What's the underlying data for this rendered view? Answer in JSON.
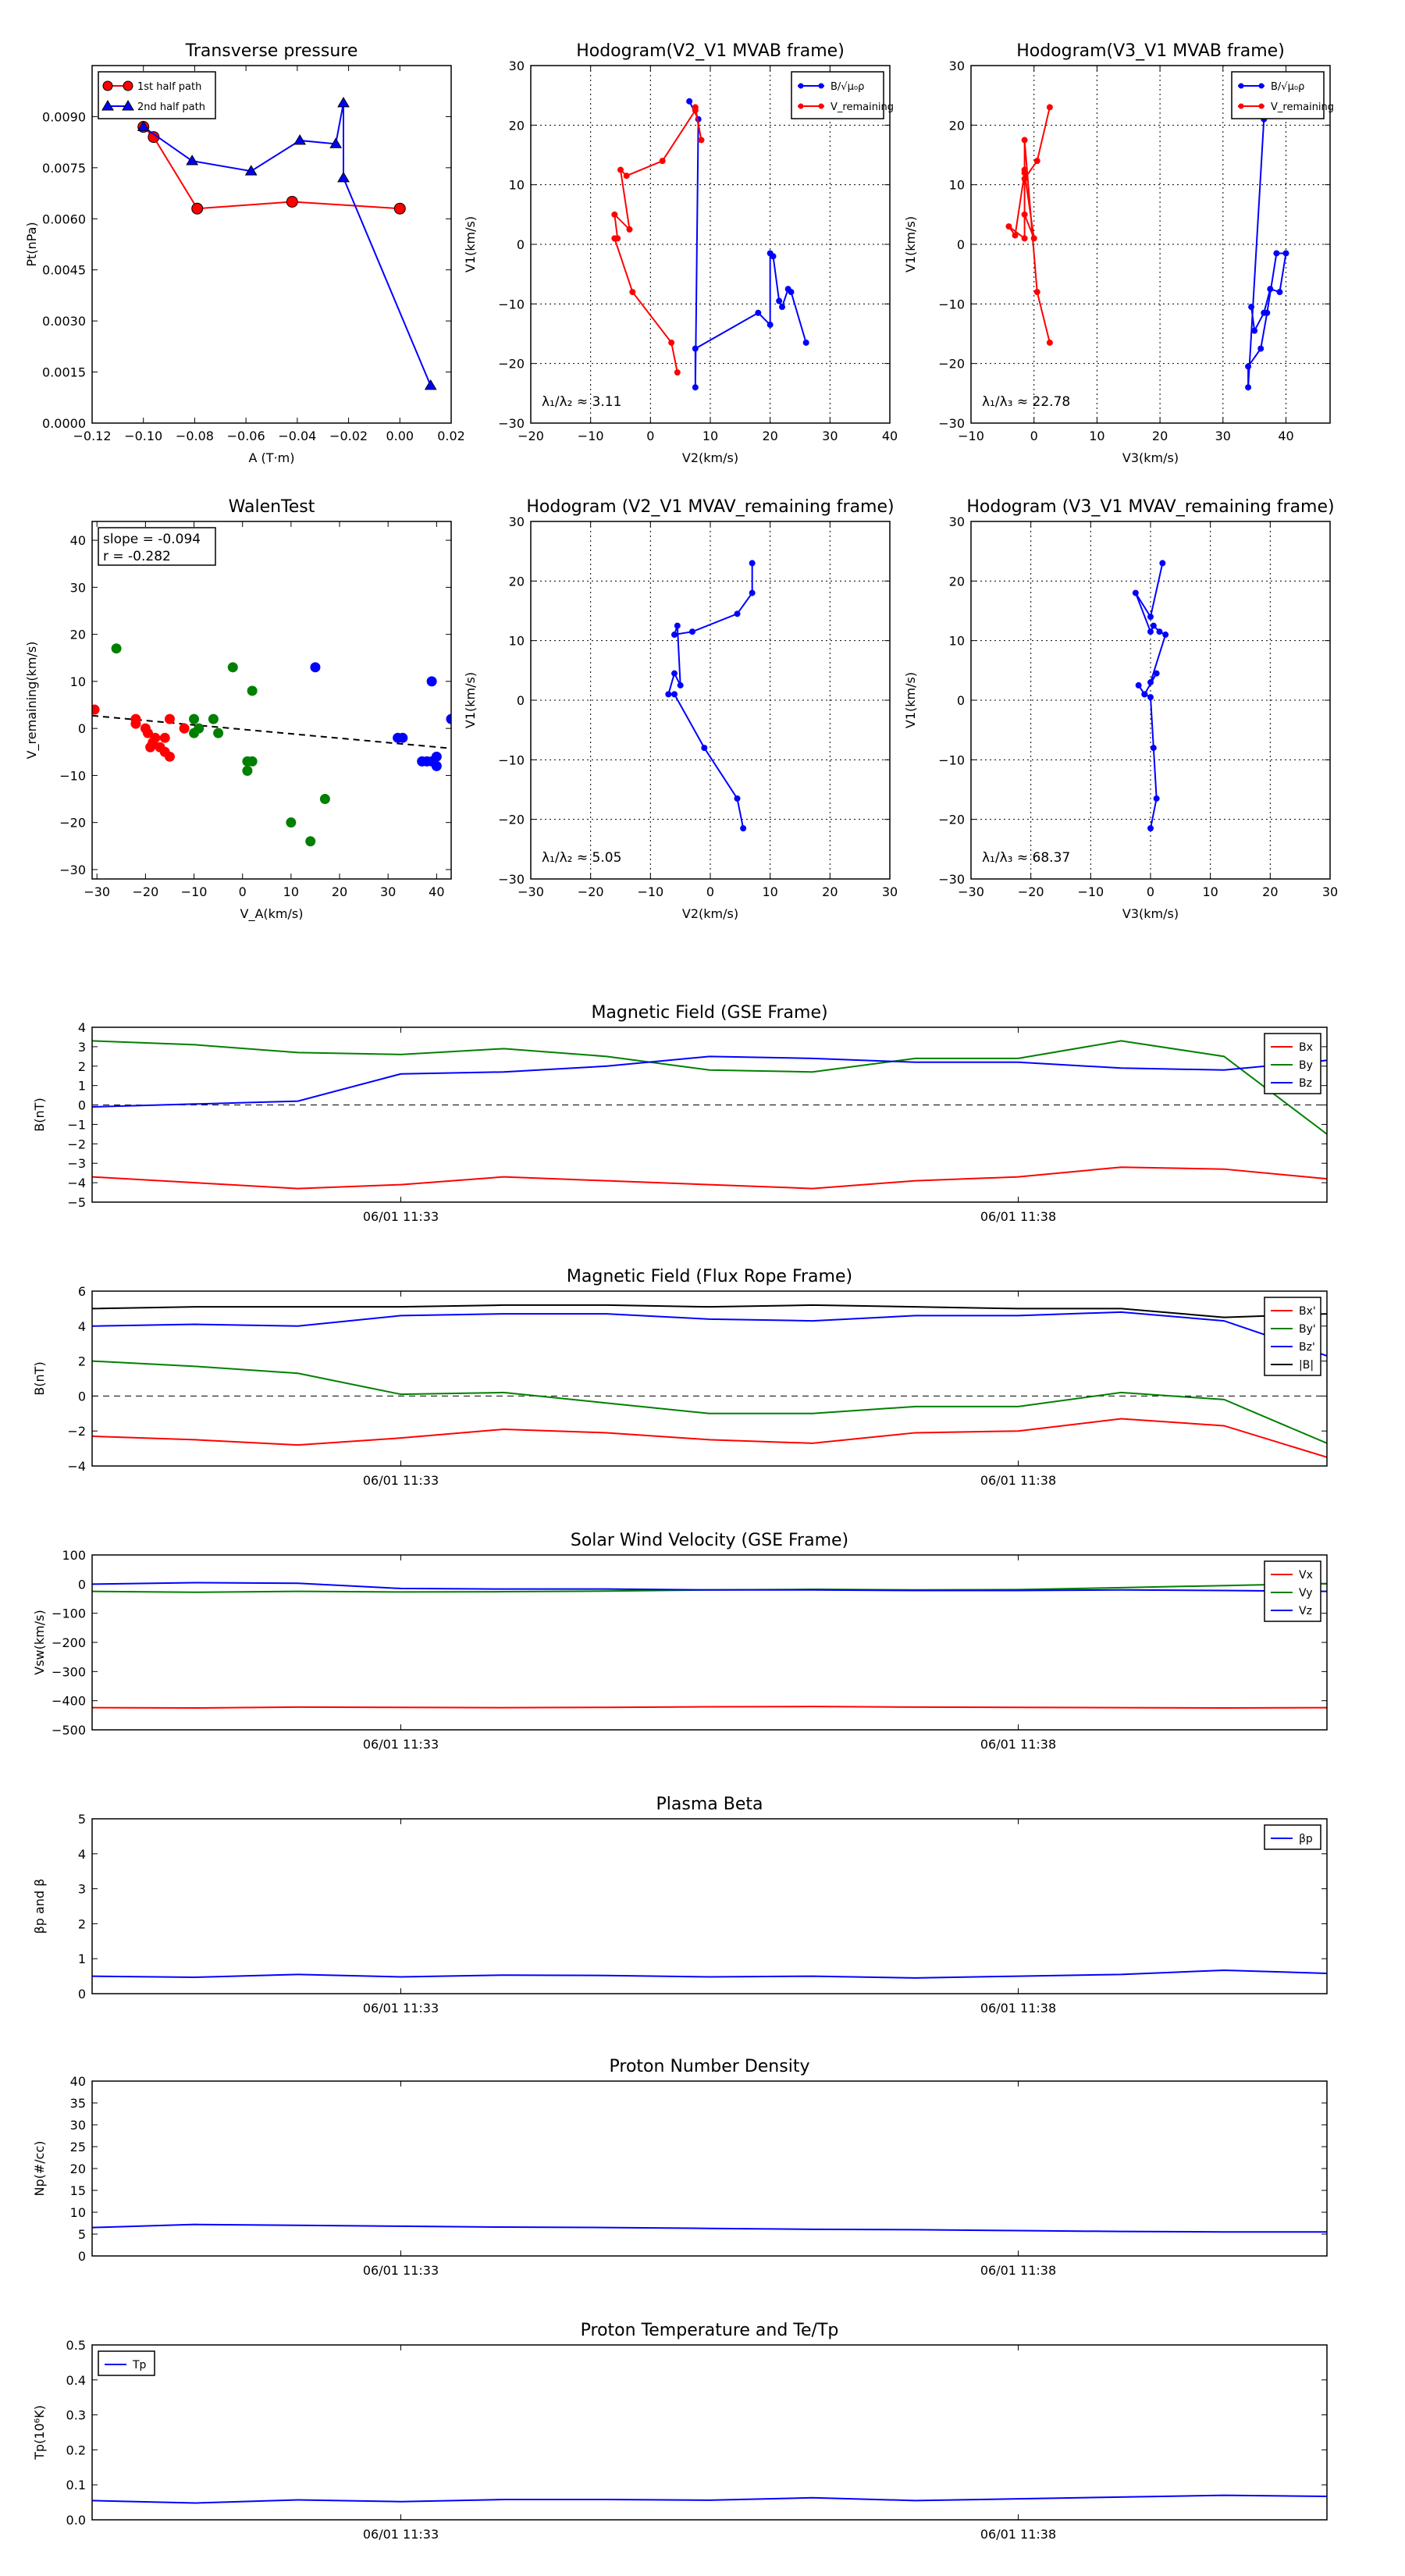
{
  "chart_data": [
    {
      "id": "tp",
      "type": "scatter",
      "title": "Transverse pressure",
      "xlabel": "A (T·m)",
      "ylabel": "Pt(nPa)",
      "xlim": [
        -0.12,
        0.02
      ],
      "ylim": [
        0,
        0.0105
      ],
      "xticks": [
        -0.12,
        -0.1,
        -0.08,
        -0.06,
        -0.04,
        -0.02,
        0.0,
        0.02
      ],
      "xtick_labels": [
        "−0.12",
        "−0.10",
        "−0.08",
        "−0.06",
        "−0.04",
        "−0.02",
        "0.00",
        "0.02"
      ],
      "yticks": [
        0,
        0.0015,
        0.003,
        0.0045,
        0.006,
        0.0075,
        0.009
      ],
      "ytick_labels": [
        "0.0000",
        "0.0015",
        "0.0030",
        "0.0045",
        "0.0060",
        "0.0075",
        "0.0090"
      ],
      "legend": "top-left",
      "series": [
        {
          "name": "1st half path",
          "color": "#ff0000",
          "marker": "circle",
          "x": [
            -0.1,
            -0.096,
            -0.079,
            -0.042,
            0.0
          ],
          "y": [
            0.0087,
            0.0084,
            0.0063,
            0.0065,
            0.0063
          ]
        },
        {
          "name": "2nd half path",
          "color": "#0000ff",
          "marker": "triangle",
          "x": [
            -0.1,
            -0.081,
            -0.058,
            -0.039,
            -0.025,
            -0.022,
            -0.022,
            0.012
          ],
          "y": [
            0.0087,
            0.0077,
            0.0074,
            0.0083,
            0.0082,
            0.0094,
            0.0072,
            0.0011
          ]
        }
      ]
    },
    {
      "id": "hodo1",
      "type": "line",
      "title": "Hodogram(V2_V1 MVAB frame)",
      "xlabel": "V2(km/s)",
      "ylabel": "V1(km/s)",
      "xlim": [
        -20,
        40
      ],
      "ylim": [
        -30,
        30
      ],
      "xticks": [
        -20,
        -10,
        0,
        10,
        20,
        30,
        40
      ],
      "yticks": [
        -30,
        -20,
        -10,
        0,
        10,
        20,
        30
      ],
      "grid": true,
      "legend": "top-right",
      "annotation": "λ₁/λ₂ ≈ 3.11",
      "series": [
        {
          "name": "B/√μ₀ρ",
          "color": "#0000ff",
          "x": [
            6.5,
            8,
            7.5,
            7.5,
            18,
            20,
            20,
            20.5,
            21.5,
            22,
            23,
            23.5,
            26
          ],
          "y": [
            24,
            21,
            -24,
            -17.5,
            -11.5,
            -13.5,
            -1.5,
            -2,
            -9.5,
            -10.5,
            -7.5,
            -8,
            -16.5
          ]
        },
        {
          "name": "V_remaining",
          "color": "#ff0000",
          "x": [
            7.5,
            8.5,
            7.5,
            2,
            -4,
            -5,
            -3.5,
            -6,
            -5.5,
            -6,
            -3,
            3.5,
            4.5
          ],
          "y": [
            23,
            17.5,
            22.5,
            14,
            11.5,
            12.5,
            2.5,
            5,
            1,
            1,
            -8,
            -16.5,
            -21.5
          ]
        }
      ]
    },
    {
      "id": "hodo2",
      "type": "line",
      "title": "Hodogram(V3_V1 MVAB frame)",
      "xlabel": "V3(km/s)",
      "ylabel": "V1(km/s)",
      "xlim": [
        -10,
        47
      ],
      "ylim": [
        -30,
        30
      ],
      "xticks": [
        -10,
        0,
        10,
        20,
        30,
        40
      ],
      "yticks": [
        -30,
        -20,
        -10,
        0,
        10,
        20,
        30
      ],
      "grid": true,
      "legend": "top-right",
      "annotation": "λ₁/λ₃ ≈ 22.78",
      "series": [
        {
          "name": "B/√μ₀ρ",
          "color": "#0000ff",
          "x": [
            35.5,
            36.5,
            34,
            34,
            36,
            37,
            38.5,
            40,
            39,
            37.5,
            36.5,
            35,
            34.5
          ],
          "y": [
            24,
            21,
            -24,
            -20.5,
            -17.5,
            -11.5,
            -1.5,
            -1.5,
            -8,
            -7.5,
            -11.5,
            -14.5,
            -10.5
          ]
        },
        {
          "name": "V_remaining",
          "color": "#ff0000",
          "x": [
            2.5,
            0.5,
            -1.5,
            -1.5,
            -1.5,
            0,
            -1.5,
            -3,
            -4,
            -1.5,
            -1.5,
            0.5,
            2.5
          ],
          "y": [
            23,
            14,
            11,
            12.5,
            5,
            1,
            12,
            1.5,
            3,
            1,
            17.5,
            -8,
            -16.5
          ]
        }
      ]
    },
    {
      "id": "walen",
      "type": "scatter",
      "title": "WalenTest",
      "xlabel": "V_A(km/s)",
      "ylabel": "V_remaining(km/s)",
      "xlim": [
        -31,
        43
      ],
      "ylim": [
        -32,
        44
      ],
      "xticks": [
        -30,
        -20,
        -10,
        0,
        10,
        20,
        30,
        40
      ],
      "yticks": [
        -30,
        -20,
        -10,
        0,
        10,
        20,
        30,
        40
      ],
      "annotation_lines": [
        "slope = -0.094",
        "r = -0.282"
      ],
      "fit_line": {
        "slope": -0.094,
        "intercept": -0.2,
        "color": "#000000"
      },
      "series": [
        {
          "color": "#ff0000",
          "x": [
            -30.5,
            -22,
            -22,
            -20,
            -19.5,
            -18,
            -18.5,
            -19,
            -17,
            -16,
            -16,
            -15,
            -15,
            -12
          ],
          "y": [
            4,
            2,
            1,
            0,
            -1,
            -2,
            -3,
            -4,
            -4,
            -2,
            -5,
            -6,
            2,
            0
          ]
        },
        {
          "color": "#008000",
          "x": [
            -26,
            -9,
            -10,
            -10,
            -6,
            -5,
            -2,
            1,
            1,
            2,
            2,
            10,
            14,
            17
          ],
          "y": [
            17,
            0,
            -1,
            2,
            2,
            -1,
            13,
            -9,
            -7,
            -7,
            8,
            -20,
            -24,
            -15
          ]
        },
        {
          "color": "#0000ff",
          "x": [
            15,
            32,
            33,
            37,
            38,
            39,
            39,
            40,
            40,
            43
          ],
          "y": [
            13,
            -2,
            -2,
            -7,
            -7,
            -7,
            10,
            -8,
            -6,
            2
          ]
        }
      ]
    },
    {
      "id": "hodo3",
      "type": "line",
      "title": "Hodogram (V2_V1 MVAV_remaining frame)",
      "xlabel": "V2(km/s)",
      "ylabel": "V1(km/s)",
      "xlim": [
        -30,
        30
      ],
      "ylim": [
        -30,
        30
      ],
      "xticks": [
        -30,
        -20,
        -10,
        0,
        10,
        20,
        30
      ],
      "yticks": [
        -30,
        -20,
        -10,
        0,
        10,
        20,
        30
      ],
      "grid": true,
      "annotation": "λ₁/λ₂ ≈ 5.05",
      "series": [
        {
          "color": "#0000ff",
          "x": [
            7,
            7,
            4.5,
            -3,
            -6,
            -5.5,
            -5,
            -6,
            -7,
            -6,
            -1,
            4.5,
            5.5
          ],
          "y": [
            23,
            18,
            14.5,
            11.5,
            11,
            12.5,
            2.5,
            4.5,
            1,
            1,
            -8,
            -16.5,
            -21.5
          ]
        }
      ]
    },
    {
      "id": "hodo4",
      "type": "line",
      "title": "Hodogram (V3_V1 MVAV_remaining frame)",
      "xlabel": "V3(km/s)",
      "ylabel": "V1(km/s)",
      "xlim": [
        -30,
        30
      ],
      "ylim": [
        -30,
        30
      ],
      "xticks": [
        -30,
        -20,
        -10,
        0,
        10,
        20,
        30
      ],
      "yticks": [
        -30,
        -20,
        -10,
        0,
        10,
        20,
        30
      ],
      "grid": true,
      "annotation": "λ₁/λ₃ ≈ 68.37",
      "series": [
        {
          "color": "#0000ff",
          "x": [
            2,
            0,
            -2.5,
            0,
            0.5,
            1.5,
            2.5,
            0,
            1,
            -1,
            -2,
            -1,
            0,
            0.5,
            1,
            0
          ],
          "y": [
            23,
            14,
            18,
            11.5,
            12.5,
            11.5,
            11,
            3,
            4.5,
            1,
            2.5,
            1,
            0.5,
            -8,
            -16.5,
            -21.5
          ]
        }
      ]
    },
    {
      "id": "bgse",
      "type": "line",
      "title": "Magnetic Field (GSE Frame)",
      "ylabel": "B(nT)",
      "x_count": 12,
      "ylim": [
        -5,
        4
      ],
      "yticks": [
        -5,
        -4,
        -3,
        -2,
        -1,
        0,
        1,
        2,
        3,
        4
      ],
      "time_ticks": [
        {
          "pos": 3,
          "label": "06/01 11:33"
        },
        {
          "pos": 9,
          "label": "06/01 11:38"
        }
      ],
      "zero_line": true,
      "legend": "top-right",
      "series": [
        {
          "name": "Bx",
          "color": "#ff0000",
          "values": [
            -3.7,
            -4.0,
            -4.3,
            -4.1,
            -3.7,
            -3.9,
            -4.1,
            -4.3,
            -3.9,
            -3.7,
            -3.2,
            -3.3,
            -3.8
          ]
        },
        {
          "name": "By",
          "color": "#008000",
          "values": [
            3.3,
            3.1,
            2.7,
            2.6,
            2.9,
            2.5,
            1.8,
            1.7,
            2.4,
            2.4,
            3.3,
            2.5,
            -1.5
          ]
        },
        {
          "name": "Bz",
          "color": "#0000ff",
          "values": [
            -0.1,
            0.05,
            0.2,
            1.6,
            1.7,
            2.0,
            2.5,
            2.4,
            2.2,
            2.2,
            1.9,
            1.8,
            2.3
          ]
        }
      ]
    },
    {
      "id": "bflux",
      "type": "line",
      "title": "Magnetic Field (Flux Rope Frame)",
      "ylabel": "B(nT)",
      "x_count": 12,
      "ylim": [
        -4,
        6
      ],
      "yticks": [
        -4,
        -2,
        0,
        2,
        4,
        6
      ],
      "time_ticks": [
        {
          "pos": 3,
          "label": "06/01 11:33"
        },
        {
          "pos": 9,
          "label": "06/01 11:38"
        }
      ],
      "zero_line": true,
      "legend": "top-right",
      "series": [
        {
          "name": "Bx'",
          "color": "#ff0000",
          "values": [
            -2.3,
            -2.5,
            -2.8,
            -2.4,
            -1.9,
            -2.1,
            -2.5,
            -2.7,
            -2.1,
            -2.0,
            -1.3,
            -1.7,
            -3.5
          ]
        },
        {
          "name": "By'",
          "color": "#008000",
          "values": [
            2.0,
            1.7,
            1.3,
            0.1,
            0.2,
            -0.4,
            -1.0,
            -1.0,
            -0.6,
            -0.6,
            0.2,
            -0.2,
            -2.7
          ]
        },
        {
          "name": "Bz'",
          "color": "#0000ff",
          "values": [
            4.0,
            4.1,
            4.0,
            4.6,
            4.7,
            4.7,
            4.4,
            4.3,
            4.6,
            4.6,
            4.8,
            4.3,
            2.3
          ]
        },
        {
          "name": "|B|",
          "color": "#000000",
          "values": [
            5.0,
            5.1,
            5.1,
            5.1,
            5.2,
            5.2,
            5.1,
            5.2,
            5.1,
            5.0,
            5.0,
            4.5,
            4.7
          ]
        }
      ]
    },
    {
      "id": "vsw",
      "type": "line",
      "title": "Solar Wind Velocity (GSE Frame)",
      "ylabel": "Vsw(km/s)",
      "x_count": 12,
      "ylim": [
        -500,
        100
      ],
      "yticks": [
        -500,
        -400,
        -300,
        -200,
        -100,
        0,
        100
      ],
      "ytick_labels": [
        "−500",
        "−400",
        "−300",
        "−200",
        "−100",
        "0",
        "100"
      ],
      "time_ticks": [
        {
          "pos": 3,
          "label": "06/01 11:33"
        },
        {
          "pos": 9,
          "label": "06/01 11:38"
        }
      ],
      "legend": "top-right",
      "series": [
        {
          "name": "Vx",
          "color": "#ff0000",
          "values": [
            -424,
            -425,
            -422,
            -423,
            -424,
            -423,
            -421,
            -420,
            -422,
            -423,
            -424,
            -425,
            -424
          ]
        },
        {
          "name": "Vy",
          "color": "#008000",
          "values": [
            -25,
            -28,
            -25,
            -27,
            -26,
            -24,
            -20,
            -18,
            -20,
            -19,
            -12,
            -5,
            2
          ]
        },
        {
          "name": "Vz",
          "color": "#0000ff",
          "values": [
            0,
            5,
            3,
            -15,
            -17,
            -17,
            -20,
            -20,
            -22,
            -22,
            -20,
            -22,
            -25
          ]
        }
      ]
    },
    {
      "id": "beta",
      "type": "line",
      "title": "Plasma Beta",
      "ylabel": "βp and β",
      "x_count": 12,
      "ylim": [
        0,
        5
      ],
      "yticks": [
        0,
        1,
        2,
        3,
        4,
        5
      ],
      "time_ticks": [
        {
          "pos": 3,
          "label": "06/01 11:33"
        },
        {
          "pos": 9,
          "label": "06/01 11:38"
        }
      ],
      "legend": "top-right",
      "series": [
        {
          "name": "βp",
          "color": "#0000ff",
          "values": [
            0.5,
            0.47,
            0.55,
            0.48,
            0.53,
            0.52,
            0.48,
            0.5,
            0.45,
            0.5,
            0.55,
            0.67,
            0.58
          ]
        }
      ]
    },
    {
      "id": "np",
      "type": "line",
      "title": "Proton Number Density",
      "ylabel": "Np(#/cc)",
      "x_count": 12,
      "ylim": [
        0,
        40
      ],
      "yticks": [
        0,
        5,
        10,
        15,
        20,
        25,
        30,
        35,
        40
      ],
      "time_ticks": [
        {
          "pos": 3,
          "label": "06/01 11:33"
        },
        {
          "pos": 9,
          "label": "06/01 11:38"
        }
      ],
      "series": [
        {
          "color": "#0000ff",
          "values": [
            6.5,
            7.2,
            7.0,
            6.8,
            6.6,
            6.5,
            6.3,
            6.1,
            6.0,
            5.8,
            5.6,
            5.5,
            5.5
          ]
        }
      ]
    },
    {
      "id": "tp_temp",
      "type": "line",
      "title": "Proton Temperature and Te/Tp",
      "ylabel": "Tp(10⁶K)",
      "x_count": 12,
      "ylim": [
        0,
        0.5
      ],
      "yticks": [
        0,
        0.1,
        0.2,
        0.3,
        0.4,
        0.5
      ],
      "ytick_labels": [
        "0.0",
        "0.1",
        "0.2",
        "0.3",
        "0.4",
        "0.5"
      ],
      "time_ticks": [
        {
          "pos": 3,
          "label": "06/01 11:33"
        },
        {
          "pos": 9,
          "label": "06/01 11:38"
        }
      ],
      "legend": "top-left",
      "series": [
        {
          "name": "Tp",
          "color": "#0000ff",
          "values": [
            0.055,
            0.048,
            0.057,
            0.052,
            0.058,
            0.058,
            0.056,
            0.063,
            0.055,
            0.06,
            0.065,
            0.07,
            0.067
          ]
        }
      ]
    }
  ]
}
